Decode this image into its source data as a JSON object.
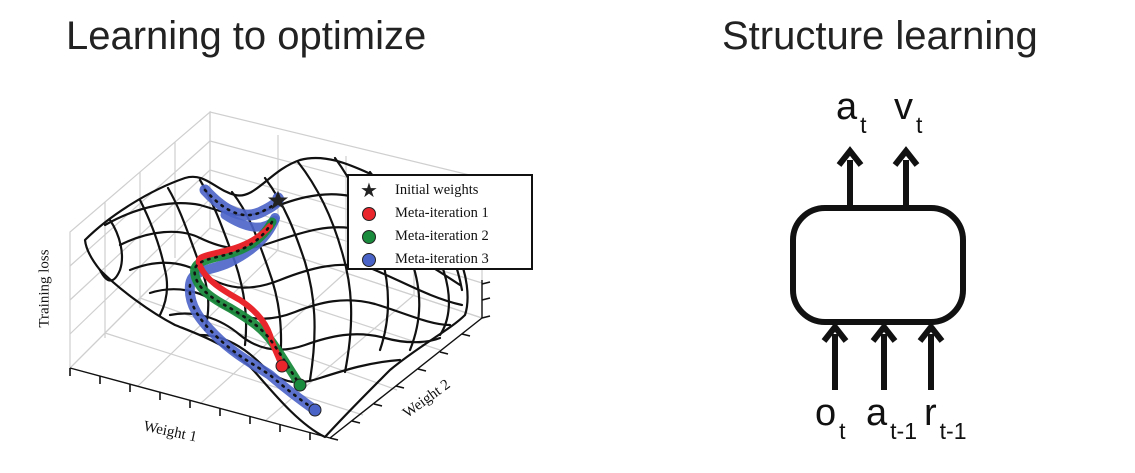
{
  "left_panel": {
    "title": "Learning to optimize",
    "axes": {
      "xlabel": "Weight 1",
      "ylabel": "Training loss",
      "zlabel": "Weight 2"
    },
    "legend": [
      {
        "label": "Initial weights",
        "marker": "star",
        "color": "#222222"
      },
      {
        "label": "Meta-iteration 1",
        "marker": "circle",
        "color": "#e8262b"
      },
      {
        "label": "Meta-iteration 2",
        "marker": "circle",
        "color": "#1a8a3c"
      },
      {
        "label": "Meta-iteration 3",
        "marker": "circle",
        "color": "#4a63c6"
      }
    ]
  },
  "right_panel": {
    "title": "Structure learning",
    "outputs": [
      {
        "base": "a",
        "sub": "t"
      },
      {
        "base": "v",
        "sub": "t"
      }
    ],
    "inputs": [
      {
        "base": "o",
        "sub": "t"
      },
      {
        "base": "a",
        "sub": "t-1"
      },
      {
        "base": "r",
        "sub": "t-1"
      }
    ]
  }
}
